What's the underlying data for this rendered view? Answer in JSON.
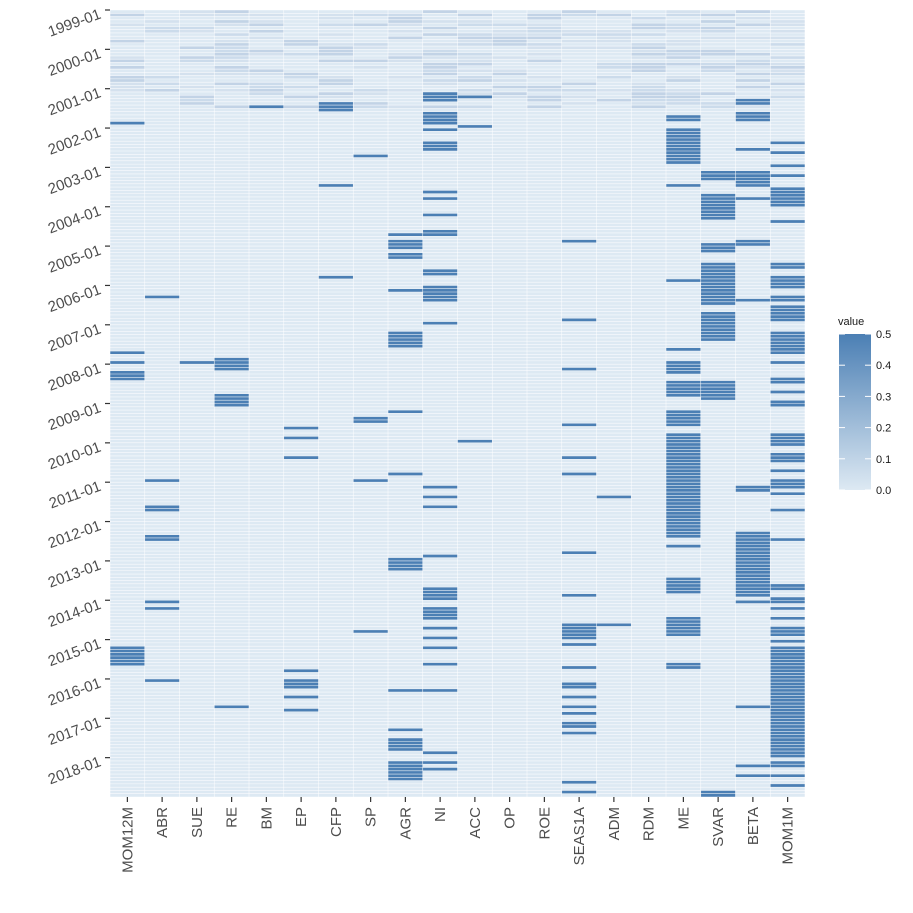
{
  "chart_data": {
    "type": "heatmap",
    "title": "",
    "xlabel": "",
    "ylabel": "",
    "x_categories": [
      "MOM12M",
      "ABR",
      "SUE",
      "RE",
      "BM",
      "EP",
      "CFP",
      "SP",
      "AGR",
      "NI",
      "ACC",
      "OP",
      "ROE",
      "SEAS1A",
      "ADM",
      "RDM",
      "ME",
      "SVAR",
      "BETA",
      "MOM1M"
    ],
    "y_range": [
      "1999-01",
      "2018-12"
    ],
    "y_tick_labels": [
      "1999-01",
      "2000-01",
      "2001-01",
      "2002-01",
      "2003-01",
      "2004-01",
      "2005-01",
      "2006-01",
      "2007-01",
      "2008-01",
      "2009-01",
      "2010-01",
      "2011-01",
      "2012-01",
      "2013-01",
      "2014-01",
      "2015-01",
      "2016-01",
      "2017-01",
      "2018-01"
    ],
    "value_range": [
      0,
      0.5
    ],
    "color_scale": {
      "low": "#dde9f3",
      "high": "#4b7fb4"
    },
    "legend": {
      "title": "value",
      "ticks": [
        "0.5",
        "0.4",
        "0.3",
        "0.2",
        "0.1",
        "0.0"
      ],
      "position": "right"
    },
    "high_value_cells": {
      "MOM12M": [
        "2001-11",
        "2007-09",
        "2007-12",
        "2008-03",
        "2008-04",
        "2008-05",
        "2015-03",
        "2015-04",
        "2015-05",
        "2015-06",
        "2015-07",
        "2015-08"
      ],
      "ABR": [
        "2006-04",
        "2010-12",
        "2011-08",
        "2011-09",
        "2012-05",
        "2012-06",
        "2014-01",
        "2014-03",
        "2016-01"
      ],
      "SUE": [
        "2007-12"
      ],
      "RE": [
        "2007-11",
        "2007-12",
        "2008-01",
        "2008-02",
        "2008-10",
        "2008-11",
        "2008-12",
        "2009-01",
        "2016-09"
      ],
      "BM": [
        "2001-06"
      ],
      "EP": [
        "2009-08",
        "2009-11",
        "2010-05",
        "2015-10",
        "2016-01",
        "2016-02",
        "2016-03",
        "2016-06",
        "2016-10"
      ],
      "CFP": [
        "2001-05",
        "2001-06",
        "2001-07",
        "2003-06",
        "2005-10"
      ],
      "SP": [
        "2002-09",
        "2009-05",
        "2009-06",
        "2010-12",
        "2014-10"
      ],
      "AGR": [
        "2004-09",
        "2004-11",
        "2004-12",
        "2005-01",
        "2005-03",
        "2005-04",
        "2006-02",
        "2007-03",
        "2007-04",
        "2007-05",
        "2007-06",
        "2007-07",
        "2009-03",
        "2010-10",
        "2012-12",
        "2013-01",
        "2013-02",
        "2013-03",
        "2016-04",
        "2017-04",
        "2017-07",
        "2017-08",
        "2017-09",
        "2017-10",
        "2018-02",
        "2018-03",
        "2018-04",
        "2018-05",
        "2018-06",
        "2018-07"
      ],
      "NI": [
        "2001-02",
        "2001-03",
        "2001-04",
        "2001-08",
        "2001-09",
        "2001-10",
        "2001-11",
        "2002-01",
        "2002-05",
        "2002-06",
        "2002-07",
        "2003-08",
        "2003-10",
        "2004-03",
        "2004-08",
        "2004-09",
        "2005-08",
        "2005-09",
        "2006-01",
        "2006-02",
        "2006-03",
        "2006-04",
        "2006-05",
        "2006-12",
        "2011-02",
        "2011-05",
        "2011-08",
        "2012-11",
        "2013-09",
        "2013-10",
        "2013-11",
        "2013-12",
        "2014-03",
        "2014-04",
        "2014-05",
        "2014-06",
        "2014-09",
        "2014-12",
        "2015-03",
        "2015-08",
        "2016-04",
        "2017-11",
        "2018-02",
        "2018-04"
      ],
      "ACC": [
        "2001-03",
        "2001-12",
        "2009-12"
      ],
      "OP": [],
      "ROE": [],
      "SEAS1A": [
        "2004-11",
        "2006-11",
        "2008-02",
        "2009-07",
        "2010-05",
        "2010-10",
        "2012-10",
        "2013-11",
        "2014-08",
        "2014-09",
        "2014-10",
        "2014-11",
        "2014-12",
        "2015-02",
        "2015-09",
        "2016-02",
        "2016-03",
        "2016-06",
        "2016-09",
        "2016-11",
        "2017-02",
        "2017-03",
        "2017-05",
        "2018-08",
        "2018-11"
      ],
      "ADM": [
        "2011-05",
        "2014-08"
      ],
      "RDM": [],
      "ME": [
        "2001-09",
        "2001-10",
        "2002-01",
        "2002-02",
        "2002-03",
        "2002-04",
        "2002-05",
        "2002-06",
        "2002-07",
        "2002-08",
        "2002-09",
        "2002-10",
        "2002-11",
        "2003-06",
        "2005-11",
        "2007-08",
        "2007-12",
        "2008-01",
        "2008-02",
        "2008-03",
        "2008-06",
        "2008-07",
        "2008-08",
        "2008-09",
        "2008-10",
        "2009-03",
        "2009-04",
        "2009-05",
        "2009-06",
        "2009-07",
        "2009-10",
        "2009-11",
        "2009-12",
        "2010-01",
        "2010-02",
        "2010-03",
        "2010-04",
        "2010-05",
        "2010-06",
        "2010-07",
        "2010-08",
        "2010-09",
        "2010-10",
        "2010-11",
        "2010-12",
        "2011-01",
        "2011-02",
        "2011-03",
        "2011-04",
        "2011-05",
        "2011-06",
        "2011-07",
        "2011-08",
        "2011-09",
        "2011-10",
        "2011-11",
        "2011-12",
        "2012-01",
        "2012-02",
        "2012-03",
        "2012-04",
        "2012-05",
        "2012-08",
        "2013-06",
        "2013-07",
        "2013-08",
        "2013-09",
        "2013-10",
        "2014-06",
        "2014-07",
        "2014-08",
        "2014-09",
        "2014-10",
        "2014-11",
        "2015-08",
        "2015-09"
      ],
      "SVAR": [
        "2003-02",
        "2003-03",
        "2003-04",
        "2003-09",
        "2003-10",
        "2003-11",
        "2003-12",
        "2004-01",
        "2004-02",
        "2004-03",
        "2004-04",
        "2004-12",
        "2005-01",
        "2005-02",
        "2005-06",
        "2005-07",
        "2005-08",
        "2005-09",
        "2005-10",
        "2005-11",
        "2005-12",
        "2006-01",
        "2006-02",
        "2006-03",
        "2006-04",
        "2006-05",
        "2006-06",
        "2006-09",
        "2006-10",
        "2006-11",
        "2006-12",
        "2007-01",
        "2007-02",
        "2007-03",
        "2007-04",
        "2007-05",
        "2008-06",
        "2008-07",
        "2008-08",
        "2008-09",
        "2008-10",
        "2008-11",
        "2018-11",
        "2018-12"
      ],
      "BETA": [
        "2001-04",
        "2001-05",
        "2001-08",
        "2001-09",
        "2001-10",
        "2002-07",
        "2003-02",
        "2003-03",
        "2003-04",
        "2003-05",
        "2003-06",
        "2003-10",
        "2004-11",
        "2004-12",
        "2006-05",
        "2011-02",
        "2011-03",
        "2012-04",
        "2012-05",
        "2012-06",
        "2012-07",
        "2012-08",
        "2012-09",
        "2012-10",
        "2012-11",
        "2012-12",
        "2013-01",
        "2013-02",
        "2013-03",
        "2013-04",
        "2013-05",
        "2013-06",
        "2013-07",
        "2013-08",
        "2013-09",
        "2013-10",
        "2013-11",
        "2014-01",
        "2016-09",
        "2018-03",
        "2018-06"
      ],
      "MOM1M": [
        "2002-05",
        "2002-08",
        "2002-12",
        "2003-03",
        "2003-07",
        "2003-08",
        "2003-09",
        "2003-10",
        "2003-11",
        "2003-12",
        "2004-05",
        "2005-06",
        "2005-07",
        "2005-10",
        "2005-11",
        "2005-12",
        "2006-01",
        "2006-04",
        "2006-05",
        "2006-07",
        "2006-08",
        "2006-09",
        "2006-10",
        "2006-11",
        "2007-03",
        "2007-04",
        "2007-05",
        "2007-06",
        "2007-07",
        "2007-08",
        "2007-09",
        "2007-12",
        "2008-05",
        "2008-06",
        "2008-09",
        "2008-12",
        "2009-01",
        "2009-10",
        "2009-11",
        "2009-12",
        "2010-01",
        "2010-04",
        "2010-05",
        "2010-06",
        "2010-09",
        "2010-12",
        "2011-01",
        "2011-02",
        "2011-04",
        "2011-09",
        "2012-06",
        "2013-08",
        "2013-09",
        "2013-12",
        "2014-01",
        "2014-03",
        "2014-06",
        "2014-09",
        "2014-10",
        "2014-11",
        "2015-01",
        "2015-03",
        "2015-04",
        "2015-05",
        "2015-06",
        "2015-07",
        "2015-08",
        "2015-09",
        "2015-10",
        "2015-11",
        "2015-12",
        "2016-01",
        "2016-02",
        "2016-03",
        "2016-04",
        "2016-05",
        "2016-06",
        "2016-07",
        "2016-08",
        "2016-09",
        "2016-10",
        "2016-11",
        "2016-12",
        "2017-01",
        "2017-02",
        "2017-03",
        "2017-04",
        "2017-05",
        "2017-06",
        "2017-07",
        "2017-08",
        "2017-09",
        "2017-10",
        "2017-11",
        "2017-12",
        "2018-02",
        "2018-03",
        "2018-06",
        "2018-09"
      ]
    },
    "early_light_shading_period": [
      "1999-01",
      "2001-06"
    ]
  }
}
